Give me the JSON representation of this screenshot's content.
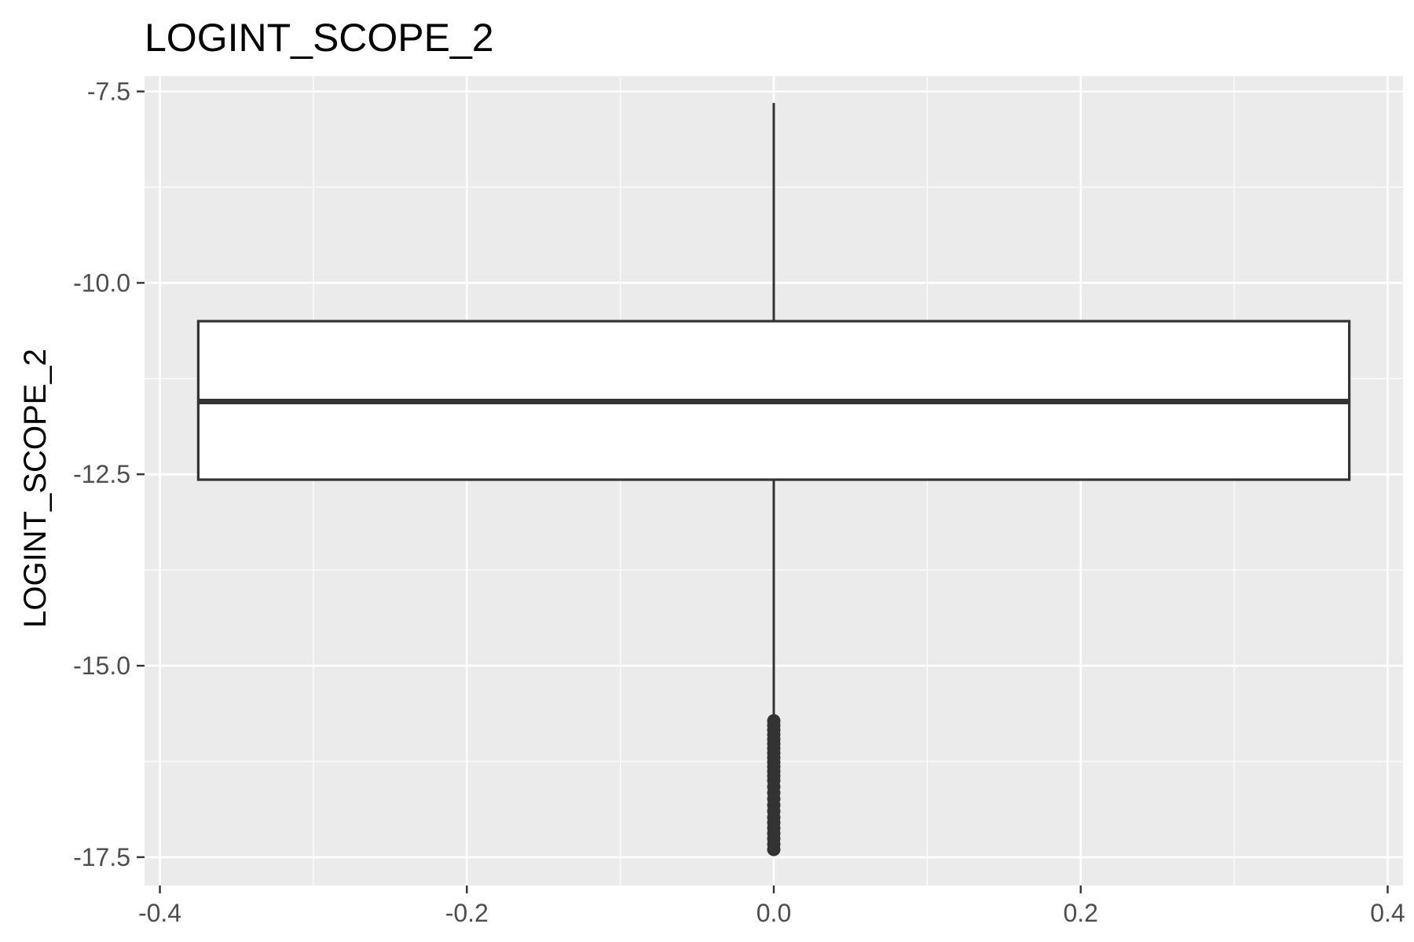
{
  "chart_data": {
    "type": "boxplot",
    "title": "LOGINT_SCOPE_2",
    "xlabel": "",
    "ylabel": "LOGINT_SCOPE_2",
    "xlim": [
      -0.41,
      0.41
    ],
    "ylim": [
      -17.87,
      -7.3
    ],
    "x_ticks": [
      -0.4,
      -0.2,
      0.0,
      0.2,
      0.4
    ],
    "x_tick_labels": [
      "-0.4",
      "-0.2",
      "0.0",
      "0.2",
      "0.4"
    ],
    "y_ticks": [
      -7.5,
      -10.0,
      -12.5,
      -15.0,
      -17.5
    ],
    "y_tick_labels": [
      "-7.5",
      "-10.0",
      "-12.5",
      "-15.0",
      "-17.5"
    ],
    "grid": true,
    "box": {
      "x": 0.0,
      "x_min": -0.375,
      "x_max": 0.375,
      "whisker_high": -7.65,
      "q3": -10.5,
      "median": -11.55,
      "q1": -12.57,
      "whisker_low": -15.7
    },
    "outliers": [
      -15.72,
      -15.78,
      -15.84,
      -15.9,
      -15.96,
      -16.02,
      -16.08,
      -16.14,
      -16.2,
      -16.26,
      -16.32,
      -16.38,
      -16.44,
      -16.5,
      -16.58,
      -16.66,
      -16.74,
      -16.82,
      -16.9,
      -16.98,
      -17.05,
      -17.12,
      -17.19,
      -17.26,
      -17.33,
      -17.4
    ],
    "colors": {
      "panel_background": "#ebebeb",
      "grid": "#ffffff",
      "box_fill": "#ffffff",
      "box_stroke": "#333333",
      "outlier": "#333333"
    }
  }
}
